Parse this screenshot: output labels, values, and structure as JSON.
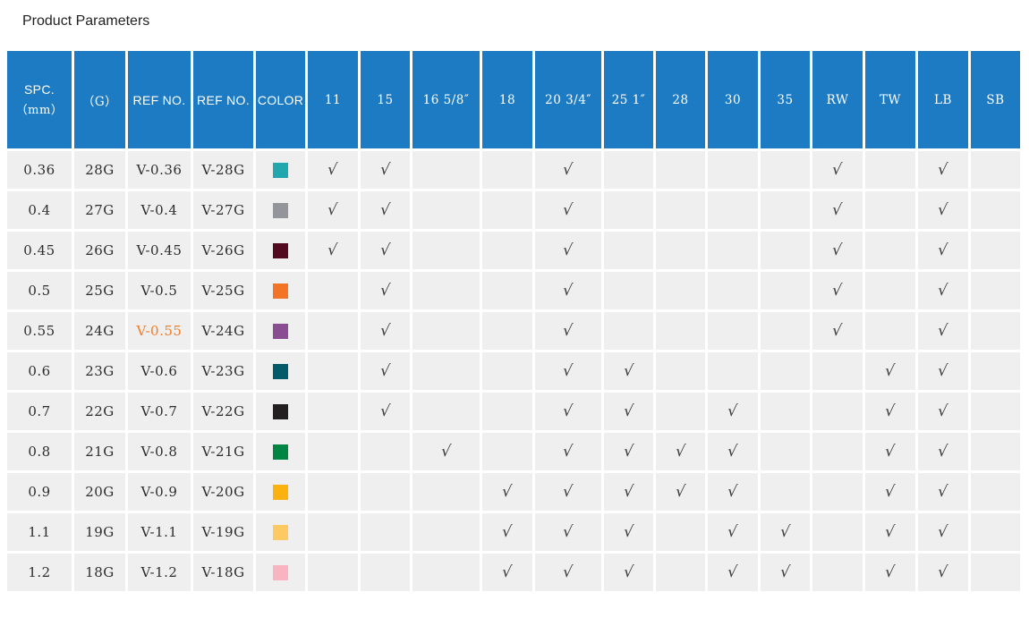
{
  "page": {
    "title": "Product Parameters"
  },
  "colors": {
    "header_bg": "#1d7bc4",
    "row_bg": "#efefef",
    "separator": "#ffffff",
    "title_text": "#222222",
    "cell_text": "#2d2d2d",
    "check_color": "#3a3a3a",
    "highlight_text": "#f57b20"
  },
  "icons": {
    "check": "√"
  },
  "table": {
    "columns": [
      {
        "id": "spc",
        "label": "SPC.",
        "sublabel": "（mm）"
      },
      {
        "id": "g",
        "label": "（G）"
      },
      {
        "id": "ref1",
        "label": "REF NO."
      },
      {
        "id": "ref2",
        "label": "REF NO."
      },
      {
        "id": "color",
        "label": "COLOR"
      },
      {
        "id": "c11",
        "label": "11"
      },
      {
        "id": "c15",
        "label": "15"
      },
      {
        "id": "c16",
        "label": "16 5/8″"
      },
      {
        "id": "c18",
        "label": "18"
      },
      {
        "id": "c20",
        "label": "20 3/4″"
      },
      {
        "id": "c25",
        "label": "25 1″"
      },
      {
        "id": "c28",
        "label": "28"
      },
      {
        "id": "c30",
        "label": "30"
      },
      {
        "id": "c35",
        "label": "35"
      },
      {
        "id": "rw",
        "label": "RW"
      },
      {
        "id": "tw",
        "label": "TW"
      },
      {
        "id": "lb",
        "label": "LB"
      },
      {
        "id": "sb",
        "label": "SB"
      }
    ],
    "rows": [
      {
        "spc": "0.36",
        "g": "28G",
        "ref1": "V-0.36",
        "ref2": "V-28G",
        "swatch": "#22a7ae",
        "highlight": false,
        "checks": [
          "c11",
          "c15",
          "c20",
          "rw",
          "lb"
        ]
      },
      {
        "spc": "0.4",
        "g": "27G",
        "ref1": "V-0.4",
        "ref2": "V-27G",
        "swatch": "#92959a",
        "highlight": false,
        "checks": [
          "c11",
          "c15",
          "c20",
          "rw",
          "lb"
        ]
      },
      {
        "spc": "0.45",
        "g": "26G",
        "ref1": "V-0.45",
        "ref2": "V-26G",
        "swatch": "#520a1e",
        "highlight": false,
        "checks": [
          "c11",
          "c15",
          "c20",
          "rw",
          "lb"
        ]
      },
      {
        "spc": "0.5",
        "g": "25G",
        "ref1": "V-0.5",
        "ref2": "V-25G",
        "swatch": "#f37424",
        "highlight": false,
        "checks": [
          "c15",
          "c20",
          "rw",
          "lb"
        ]
      },
      {
        "spc": "0.55",
        "g": "24G",
        "ref1": "V-0.55",
        "ref2": "V-24G",
        "swatch": "#8a4d92",
        "highlight": true,
        "checks": [
          "c15",
          "c20",
          "rw",
          "lb"
        ]
      },
      {
        "spc": "0.6",
        "g": "23G",
        "ref1": "V-0.6",
        "ref2": "V-23G",
        "swatch": "#035a68",
        "highlight": false,
        "checks": [
          "c15",
          "c20",
          "c25",
          "tw",
          "lb"
        ]
      },
      {
        "spc": "0.7",
        "g": "22G",
        "ref1": "V-0.7",
        "ref2": "V-22G",
        "swatch": "#231f20",
        "highlight": false,
        "checks": [
          "c15",
          "c20",
          "c25",
          "c30",
          "tw",
          "lb"
        ]
      },
      {
        "spc": "0.8",
        "g": "21G",
        "ref1": "V-0.8",
        "ref2": "V-21G",
        "swatch": "#008542",
        "highlight": false,
        "checks": [
          "c16",
          "c20",
          "c25",
          "c28",
          "c30",
          "tw",
          "lb"
        ]
      },
      {
        "spc": "0.9",
        "g": "20G",
        "ref1": "V-0.9",
        "ref2": "V-20G",
        "swatch": "#fbb10f",
        "highlight": false,
        "checks": [
          "c18",
          "c20",
          "c25",
          "c28",
          "c30",
          "tw",
          "lb"
        ]
      },
      {
        "spc": "1.1",
        "g": "19G",
        "ref1": "V-1.1",
        "ref2": "V-19G",
        "swatch": "#fdc963",
        "highlight": false,
        "checks": [
          "c18",
          "c20",
          "c25",
          "c30",
          "c35",
          "tw",
          "lb"
        ]
      },
      {
        "spc": "1.2",
        "g": "18G",
        "ref1": "V-1.2",
        "ref2": "V-18G",
        "swatch": "#f8b5c1",
        "highlight": false,
        "checks": [
          "c18",
          "c20",
          "c25",
          "c30",
          "c35",
          "tw",
          "lb"
        ]
      }
    ]
  }
}
